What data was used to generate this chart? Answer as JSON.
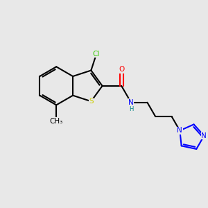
{
  "background_color": "#e8e8e8",
  "bond_color": "#000000",
  "atom_colors": {
    "C": "#000000",
    "Cl": "#33cc00",
    "O": "#ff0000",
    "N": "#0000ff",
    "S": "#cccc00",
    "H": "#008080",
    "CH3": "#000000"
  },
  "figsize": [
    3.0,
    3.0
  ],
  "dpi": 100,
  "xlim": [
    0,
    10
  ],
  "ylim": [
    0,
    10
  ]
}
